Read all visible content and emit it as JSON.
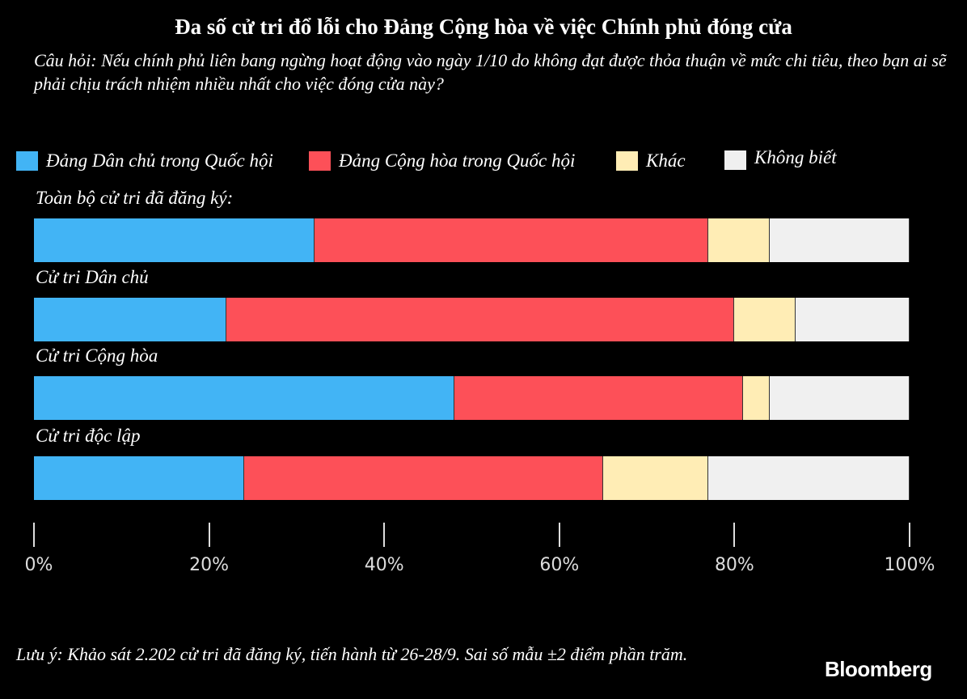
{
  "chart_data": {
    "type": "bar",
    "orientation": "horizontal-stacked",
    "title": "Đa số cử tri đổ lỗi cho Đảng Cộng hòa về việc Chính phủ đóng cửa",
    "subtitle": "Câu hỏi: Nếu chính phủ liên bang ngừng hoạt động vào ngày 1/10 do không đạt được thỏa thuận về mức chi tiêu, theo bạn ai sẽ phải chịu trách nhiệm nhiều nhất cho việc đóng cửa này?",
    "categories": [
      "Toàn bộ cử tri đã đăng ký:",
      "Cử tri Dân chủ",
      "Cử tri Cộng hòa",
      "Cử tri độc lập"
    ],
    "series": [
      {
        "name": "Đảng Dân chủ trong Quốc hội",
        "color": "#42b4f5",
        "values": [
          32,
          22,
          48,
          24
        ]
      },
      {
        "name": "Đảng Cộng hòa trong Quốc hội",
        "color": "#fd5058",
        "values": [
          45,
          58,
          33,
          41
        ]
      },
      {
        "name": "Khác",
        "color": "#ffedb5",
        "values": [
          7,
          7,
          3,
          12
        ]
      },
      {
        "name": "Không biết",
        "color": "#f0f0f0",
        "values": [
          16,
          13,
          16,
          23
        ]
      }
    ],
    "xlim": [
      0,
      100
    ],
    "xticks": [
      "0%",
      "20%",
      "40%",
      "60%",
      "80%",
      "100%"
    ],
    "legend_position": "top",
    "grid": false
  },
  "footer": {
    "note": "Lưu ý: Khảo sát 2.202 cử tri đã đăng ký, tiến hành từ 26-28/9. Sai số mẫu ±2 điểm phần trăm.",
    "brand": "Bloomberg"
  }
}
